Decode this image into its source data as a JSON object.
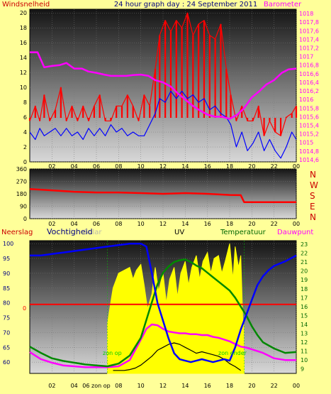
{
  "title": "24 hour graph day : 24 September 2011",
  "colors": {
    "background": "#ffff99",
    "wind_label": "#cc0000",
    "barometer_label": "#ff00ff",
    "humidity_label": "#000080",
    "temperature_label": "#006600",
    "dewpoint_label": "#ff00ff",
    "direction_label": "#cc0000"
  },
  "chart_data": [
    {
      "type": "line",
      "name": "wind-barometer",
      "x_ticks": [
        "02",
        "04",
        "06",
        "08",
        "10",
        "12",
        "14",
        "16",
        "18",
        "20",
        "22",
        "00"
      ],
      "y_left_label": "Windsnelheid",
      "y_left_ticks": [
        "0",
        "2",
        "4",
        "6",
        "8",
        "10",
        "12",
        "14",
        "16",
        "18",
        "20"
      ],
      "ylim_left": [
        0,
        20.5
      ],
      "y_right_label": "Barometer",
      "y_right_ticks": [
        "1014,6",
        "1014,8",
        "1015",
        "1015,2",
        "1015,4",
        "1015,6",
        "1015,8",
        "1016",
        "1016,2",
        "1016,4",
        "1016,6",
        "1016,8",
        "1017",
        "1017,2",
        "1017,4",
        "1017,6",
        "1017,8",
        "1018"
      ],
      "ylim_right": [
        1014.55,
        1018.1
      ],
      "gust_hours": [
        0,
        0.5,
        0.9,
        1.3,
        1.8,
        2.3,
        2.8,
        3.3,
        3.8,
        4.3,
        4.8,
        5.3,
        5.8,
        6.3,
        6.8,
        7.3,
        7.8,
        8.3,
        8.8,
        9.3,
        9.8,
        10.3,
        10.8,
        11.3,
        11.7,
        12.2,
        12.7,
        13.2,
        13.7,
        14.2,
        14.7,
        15.2,
        15.7,
        16.2,
        16.7,
        17.2,
        17.7,
        18.1,
        18.6,
        19.1,
        19.6,
        20.1,
        20.6,
        21.1,
        21.6,
        22.1,
        22.6,
        23.1,
        23.6,
        24
      ],
      "gust_values": [
        5.5,
        7.5,
        5.5,
        9,
        5.5,
        7,
        10,
        5.5,
        7.5,
        5.5,
        7.5,
        5.5,
        7.5,
        9,
        5.5,
        5.5,
        7.5,
        7.5,
        9,
        7.5,
        5.5,
        9,
        7.5,
        12.5,
        17,
        19,
        17.5,
        19,
        18,
        20,
        17,
        18.5,
        19,
        17,
        16.5,
        18.5,
        12.5,
        9,
        5.5,
        7.5,
        5.5,
        5.5,
        7.5,
        3.5,
        5.5,
        4,
        3.5,
        6,
        6.5,
        7.5
      ],
      "wind_hours": [
        0,
        0.5,
        0.9,
        1.3,
        1.8,
        2.3,
        2.8,
        3.3,
        3.8,
        4.3,
        4.8,
        5.3,
        5.8,
        6.3,
        6.8,
        7.3,
        7.8,
        8.3,
        8.8,
        9.3,
        9.8,
        10.3,
        10.8,
        11.3,
        11.7,
        12.2,
        12.7,
        13.2,
        13.7,
        14.2,
        14.7,
        15.2,
        15.7,
        16.2,
        16.7,
        17.2,
        17.7,
        18.1,
        18.6,
        19.1,
        19.6,
        20.1,
        20.6,
        21.1,
        21.6,
        22.1,
        22.6,
        23.1,
        23.6,
        24
      ],
      "wind_values": [
        4,
        3,
        4.5,
        3.5,
        4,
        4.5,
        3.5,
        4.5,
        3.5,
        4,
        3,
        4.5,
        3.5,
        4.5,
        3.5,
        5,
        4,
        4.5,
        3.5,
        4,
        3.5,
        3.5,
        5,
        6.5,
        8.5,
        8,
        9.5,
        8.5,
        9.5,
        8.5,
        9,
        8,
        8.5,
        7,
        7.5,
        6.5,
        6,
        5,
        2,
        4,
        1.5,
        2.5,
        4,
        1.5,
        3,
        1.5,
        0.5,
        2,
        4,
        3
      ],
      "pressure_hours": [
        0,
        0.7,
        1.3,
        2,
        2.7,
        3.3,
        4,
        4.7,
        5.3,
        6,
        6.7,
        7.3,
        8,
        8.7,
        9.3,
        10,
        10.7,
        11.3,
        12,
        12.7,
        13.3,
        14,
        14.7,
        15.3,
        16,
        16.7,
        17.3,
        18,
        18.7,
        19.3,
        20,
        20.7,
        21.3,
        22,
        22.7,
        23.3,
        24
      ],
      "pressure_values": [
        1017.1,
        1017.1,
        1016.75,
        1016.78,
        1016.8,
        1016.85,
        1016.72,
        1016.72,
        1016.65,
        1016.62,
        1016.58,
        1016.55,
        1016.55,
        1016.55,
        1016.57,
        1016.58,
        1016.55,
        1016.45,
        1016.4,
        1016.3,
        1016.15,
        1016.0,
        1015.85,
        1015.75,
        1015.65,
        1015.6,
        1015.6,
        1015.55,
        1015.65,
        1015.8,
        1016.05,
        1016.2,
        1016.35,
        1016.45,
        1016.62,
        1016.7,
        1016.72
      ]
    },
    {
      "type": "line",
      "name": "wind-direction",
      "x_ticks": [
        "02",
        "04",
        "06",
        "08",
        "10",
        "12",
        "14",
        "16",
        "18",
        "20",
        "22",
        "00"
      ],
      "y_ticks": [
        "0",
        "90",
        "180",
        "270",
        "360"
      ],
      "ylim": [
        0,
        360
      ],
      "right_labels": [
        "N",
        "W",
        "S",
        "E",
        "N"
      ],
      "hours": [
        0,
        2,
        4,
        6,
        8,
        10,
        12,
        14,
        16,
        18,
        19,
        19.3,
        22,
        24
      ],
      "values": [
        215,
        205,
        195,
        190,
        190,
        185,
        180,
        185,
        180,
        172,
        170,
        120,
        120,
        120
      ]
    },
    {
      "type": "line",
      "name": "humidity-temperature",
      "labels": [
        "Neerslag",
        "Vochtigheid",
        "Solar",
        "UV",
        "Temperatuur",
        "Dauwpunt"
      ],
      "x_ticks": [
        "02",
        "04",
        "06 zon op",
        "08",
        "10",
        "12",
        "14",
        "16",
        "18",
        "20",
        "22",
        "00"
      ],
      "y_left_ticks": [
        "60",
        "65",
        "70",
        "75",
        "80",
        "85",
        "90",
        "95",
        "100"
      ],
      "ylim_left": [
        56.2,
        101
      ],
      "y_right_ticks": [
        "9",
        "10",
        "11",
        "12",
        "13",
        "14",
        "15",
        "16",
        "17",
        "18",
        "19",
        "20",
        "21",
        "22",
        "23"
      ],
      "ylim_right": [
        8.5,
        23.4
      ],
      "rain_axis_label": "0",
      "rain_zero_level": 79.5,
      "annotations": [
        "zon op",
        "zon onder"
      ],
      "sunrise_hour": 7.0,
      "sunset_hour": 19.3,
      "humidity_hours": [
        0,
        1,
        2,
        3,
        4,
        5,
        6,
        7,
        8,
        9,
        10,
        10.5,
        11,
        11.5,
        12,
        12.5,
        13,
        13.5,
        14,
        14.5,
        15,
        15.5,
        16,
        16.5,
        17,
        17.5,
        18,
        18.5,
        19,
        19.5,
        20,
        20.5,
        21,
        21.5,
        22,
        23,
        24
      ],
      "humidity_values": [
        96,
        96,
        96.5,
        97,
        97.5,
        98,
        98.5,
        99,
        99.5,
        100,
        100,
        99,
        90,
        80,
        74,
        68,
        63,
        61,
        60.5,
        60,
        60.5,
        61,
        60.5,
        60,
        60.5,
        61,
        60.5,
        65,
        71,
        76,
        81,
        86,
        89,
        91,
        92.5,
        94,
        96
      ],
      "temperature_hours": [
        0,
        1,
        2,
        3,
        4,
        5,
        6,
        7,
        8,
        9,
        10,
        10.5,
        11,
        11.5,
        12,
        12.5,
        13,
        13.5,
        14,
        14.5,
        15,
        15.5,
        16,
        16.5,
        17,
        17.5,
        18,
        18.5,
        19,
        19.5,
        20,
        20.5,
        21,
        22,
        23,
        24
      ],
      "temperature_values": [
        11.5,
        10.8,
        10.2,
        9.9,
        9.7,
        9.5,
        9.4,
        9.3,
        9.6,
        10.5,
        12.5,
        14.5,
        16.5,
        18.5,
        19.8,
        20.5,
        21,
        21.2,
        21.3,
        21,
        20.6,
        20.3,
        19.8,
        19.3,
        18.8,
        18.3,
        17.8,
        17,
        16,
        15,
        13.8,
        12.8,
        12,
        11.3,
        10.8,
        10.9
      ],
      "dewpoint_hours": [
        0,
        1,
        2,
        3,
        4,
        5,
        6,
        7,
        8,
        9,
        10,
        10.5,
        11,
        11.5,
        12,
        12.5,
        13,
        13.5,
        14,
        14.5,
        15,
        15.5,
        16,
        16.5,
        17,
        17.5,
        18,
        18.5,
        19,
        19.5,
        20,
        20.5,
        21,
        21.5,
        22,
        23,
        24
      ],
      "dewpoint_values": [
        10.9,
        10.1,
        9.7,
        9.4,
        9.3,
        9.2,
        9.2,
        9.2,
        9.3,
        10,
        12.3,
        13.5,
        14,
        13.9,
        13.5,
        13.2,
        13.1,
        13,
        13,
        12.9,
        12.9,
        12.8,
        12.8,
        12.6,
        12.5,
        12.3,
        12.1,
        11.8,
        11.5,
        11.4,
        11.2,
        11,
        10.8,
        10.5,
        10.2,
        10,
        10
      ],
      "solar_hours": [
        7,
        7.2,
        7.5,
        8,
        8.5,
        9,
        9.3,
        9.6,
        10,
        10.3,
        10.6,
        11,
        11.3,
        11.6,
        12,
        12.3,
        12.6,
        13,
        13.3,
        13.6,
        14,
        14.3,
        14.6,
        15,
        15.3,
        15.6,
        16,
        16.3,
        16.6,
        17,
        17.3,
        17.6,
        18,
        18.3,
        18.5,
        18.8,
        19,
        19.3
      ],
      "solar_values": [
        73,
        78,
        85,
        90,
        91,
        92,
        88,
        91,
        93,
        86,
        78,
        83,
        92,
        84,
        90,
        80,
        88,
        92,
        82,
        90,
        94,
        86,
        92,
        96,
        88,
        94,
        97,
        90,
        95,
        96,
        90,
        94,
        100,
        88,
        99,
        92,
        96,
        60
      ],
      "uv_hours": [
        7.5,
        8.5,
        9,
        9.5,
        10,
        10.5,
        11,
        11.5,
        12,
        12.5,
        13,
        13.5,
        14,
        14.5,
        15,
        15.5,
        16,
        16.5,
        17,
        17.5,
        18,
        18.5,
        19
      ],
      "uv_values": [
        57.2,
        57.2,
        57.5,
        58,
        59,
        60.5,
        62,
        64,
        65,
        66,
        66.5,
        66,
        65,
        64,
        63,
        63.5,
        63,
        62.5,
        62,
        61,
        59.5,
        58.5,
        57.2
      ]
    }
  ]
}
